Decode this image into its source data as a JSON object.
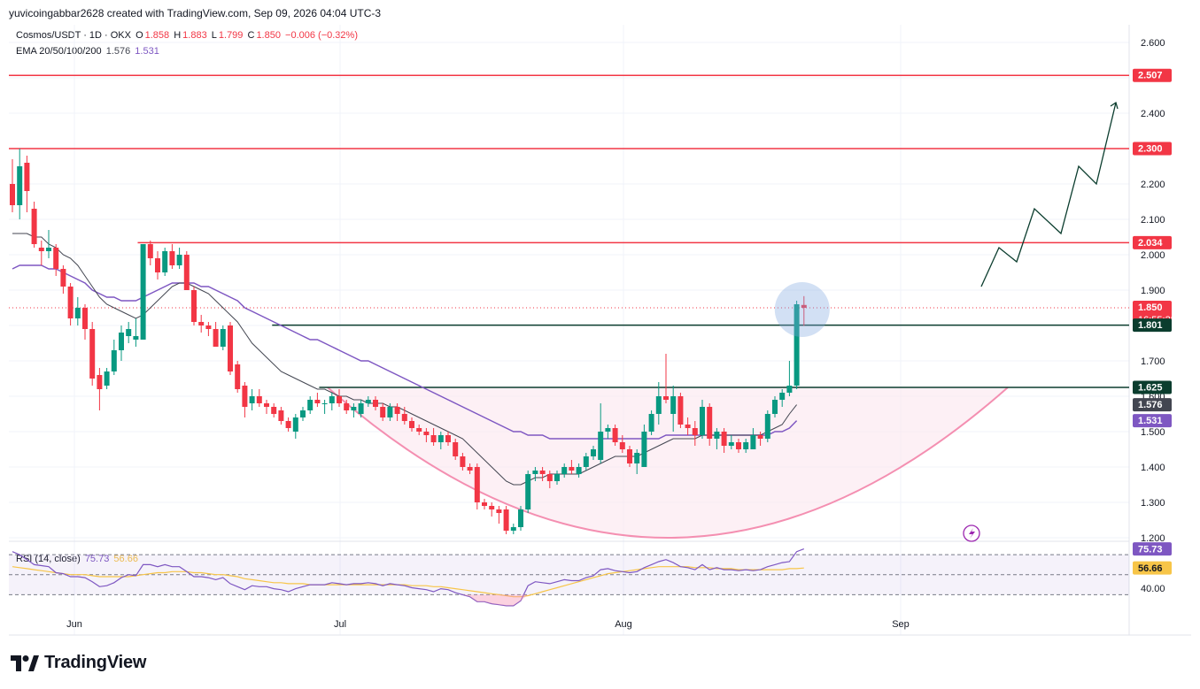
{
  "credit": "yuvicoingabbar2628 created with TradingView.com, Sep 09, 2026 04:04 UTC-3",
  "brand": "TradingView",
  "legend": {
    "symbol": "Cosmos/USDT · 1D · OKX",
    "o_label": "O",
    "o": "1.858",
    "h_label": "H",
    "h": "1.883",
    "l_label": "L",
    "l": "1.799",
    "c_label": "C",
    "c": "1.850",
    "change": "−0.006 (−0.32%)",
    "ema_label": "EMA 20/50/100/200",
    "ema_values": [
      "1.576",
      "1.531"
    ]
  },
  "rsi_legend": {
    "label": "RSI (14, close)",
    "rsi": "75.73",
    "ma": "56.66"
  },
  "colors": {
    "up": "#089981",
    "down": "#f23645",
    "resistance": "#f23645",
    "support": "#0b3d2e",
    "ema20": "#434651",
    "ema50": "#7e57c2",
    "rsi": "#7e57c2",
    "rsi_ma": "#f7c548",
    "cup": "#f48fb1",
    "projection": "#0b3d2e",
    "highlight": "#7ea6e0"
  },
  "chart_data": {
    "type": "candlestick",
    "title": "Cosmos/USDT · 1D · OKX",
    "x_labels": [
      "Jun",
      "Jul",
      "Aug",
      "Sep"
    ],
    "y_ticks": [
      "2.600",
      "2.500",
      "2.400",
      "2.300",
      "2.200",
      "2.100",
      "2.000",
      "1.900",
      "1.800",
      "1.700",
      "1.600",
      "1.500",
      "1.400",
      "1.300",
      "1.200"
    ],
    "ylim": [
      1.17,
      2.65
    ],
    "price_badges": [
      {
        "text": "2.507",
        "value": 2.507,
        "color": "#f23645"
      },
      {
        "text": "2.300",
        "value": 2.3,
        "color": "#f23645"
      },
      {
        "text": "2.034",
        "value": 2.034,
        "color": "#f23645"
      },
      {
        "text": "1.850",
        "value": 1.85,
        "color": "#f23645",
        "sub": "16:55:28"
      },
      {
        "text": "1.801",
        "value": 1.801,
        "color": "#0b3d2e"
      },
      {
        "text": "1.625",
        "value": 1.625,
        "color": "#0b3d2e"
      },
      {
        "text": "1.576",
        "value": 1.576,
        "color": "#434651"
      },
      {
        "text": "1.531",
        "value": 1.531,
        "color": "#7e57c2"
      }
    ],
    "horizontal_lines": [
      {
        "value": 2.507,
        "color": "#f23645",
        "from": 0.0
      },
      {
        "value": 2.3,
        "color": "#f23645",
        "from": 0.0
      },
      {
        "value": 2.034,
        "color": "#f23645",
        "from": 0.115
      },
      {
        "value": 1.801,
        "color": "#0b3d2e",
        "from": 0.235
      },
      {
        "value": 1.625,
        "color": "#0b3d2e",
        "from": 0.277
      }
    ],
    "candles": [
      [
        2.2,
        2.27,
        2.12,
        2.14
      ],
      [
        2.14,
        2.3,
        2.1,
        2.25
      ],
      [
        2.26,
        2.28,
        2.12,
        2.18
      ],
      [
        2.13,
        2.15,
        2.02,
        2.03
      ],
      [
        2.02,
        2.04,
        1.97,
        2.01
      ],
      [
        2.01,
        2.07,
        1.99,
        2.02
      ],
      [
        2.02,
        2.03,
        1.94,
        1.96
      ],
      [
        1.96,
        1.97,
        1.89,
        1.91
      ],
      [
        1.91,
        1.92,
        1.8,
        1.82
      ],
      [
        1.82,
        1.88,
        1.8,
        1.85
      ],
      [
        1.85,
        1.86,
        1.76,
        1.79
      ],
      [
        1.79,
        1.81,
        1.63,
        1.65
      ],
      [
        1.66,
        1.68,
        1.56,
        1.62
      ],
      [
        1.63,
        1.68,
        1.62,
        1.67
      ],
      [
        1.67,
        1.76,
        1.66,
        1.73
      ],
      [
        1.73,
        1.8,
        1.7,
        1.78
      ],
      [
        1.77,
        1.81,
        1.75,
        1.79
      ],
      [
        1.76,
        1.82,
        1.74,
        1.77
      ],
      [
        1.76,
        2.03,
        1.76,
        2.03
      ],
      [
        2.03,
        2.04,
        1.97,
        1.99
      ],
      [
        1.99,
        2.01,
        1.93,
        1.95
      ],
      [
        1.95,
        2.02,
        1.94,
        2.01
      ],
      [
        2.01,
        2.03,
        1.96,
        1.97
      ],
      [
        1.97,
        2.02,
        1.96,
        2.0
      ],
      [
        2.0,
        2.01,
        1.9,
        1.9
      ],
      [
        1.9,
        1.91,
        1.8,
        1.81
      ],
      [
        1.81,
        1.83,
        1.78,
        1.8
      ],
      [
        1.8,
        1.81,
        1.77,
        1.79
      ],
      [
        1.79,
        1.81,
        1.74,
        1.74
      ],
      [
        1.74,
        1.8,
        1.73,
        1.79
      ],
      [
        1.8,
        1.81,
        1.66,
        1.67
      ],
      [
        1.69,
        1.7,
        1.61,
        1.62
      ],
      [
        1.63,
        1.64,
        1.54,
        1.57
      ],
      [
        1.58,
        1.62,
        1.56,
        1.6
      ],
      [
        1.6,
        1.62,
        1.57,
        1.58
      ],
      [
        1.58,
        1.59,
        1.55,
        1.57
      ],
      [
        1.57,
        1.58,
        1.54,
        1.55
      ],
      [
        1.56,
        1.57,
        1.52,
        1.53
      ],
      [
        1.53,
        1.54,
        1.5,
        1.51
      ],
      [
        1.5,
        1.55,
        1.48,
        1.54
      ],
      [
        1.54,
        1.57,
        1.53,
        1.56
      ],
      [
        1.56,
        1.6,
        1.55,
        1.59
      ],
      [
        1.59,
        1.61,
        1.57,
        1.58
      ],
      [
        1.58,
        1.59,
        1.55,
        1.58
      ],
      [
        1.58,
        1.61,
        1.56,
        1.6
      ],
      [
        1.6,
        1.62,
        1.57,
        1.58
      ],
      [
        1.58,
        1.59,
        1.55,
        1.56
      ],
      [
        1.56,
        1.58,
        1.54,
        1.57
      ],
      [
        1.55,
        1.59,
        1.54,
        1.58
      ],
      [
        1.58,
        1.6,
        1.57,
        1.59
      ],
      [
        1.59,
        1.6,
        1.56,
        1.57
      ],
      [
        1.57,
        1.58,
        1.53,
        1.54
      ],
      [
        1.54,
        1.58,
        1.53,
        1.57
      ],
      [
        1.57,
        1.58,
        1.53,
        1.55
      ],
      [
        1.55,
        1.57,
        1.52,
        1.53
      ],
      [
        1.53,
        1.54,
        1.5,
        1.51
      ],
      [
        1.51,
        1.52,
        1.49,
        1.5
      ],
      [
        1.5,
        1.51,
        1.47,
        1.49
      ],
      [
        1.49,
        1.51,
        1.46,
        1.47
      ],
      [
        1.47,
        1.5,
        1.45,
        1.49
      ],
      [
        1.49,
        1.5,
        1.46,
        1.47
      ],
      [
        1.47,
        1.48,
        1.42,
        1.43
      ],
      [
        1.43,
        1.44,
        1.39,
        1.4
      ],
      [
        1.4,
        1.41,
        1.38,
        1.39
      ],
      [
        1.4,
        1.41,
        1.28,
        1.3
      ],
      [
        1.3,
        1.31,
        1.28,
        1.29
      ],
      [
        1.29,
        1.3,
        1.26,
        1.28
      ],
      [
        1.28,
        1.29,
        1.24,
        1.27
      ],
      [
        1.28,
        1.29,
        1.21,
        1.22
      ],
      [
        1.22,
        1.24,
        1.21,
        1.23
      ],
      [
        1.23,
        1.29,
        1.22,
        1.28
      ],
      [
        1.28,
        1.39,
        1.27,
        1.38
      ],
      [
        1.38,
        1.4,
        1.36,
        1.39
      ],
      [
        1.39,
        1.4,
        1.36,
        1.38
      ],
      [
        1.38,
        1.39,
        1.34,
        1.36
      ],
      [
        1.36,
        1.39,
        1.35,
        1.38
      ],
      [
        1.38,
        1.41,
        1.37,
        1.4
      ],
      [
        1.4,
        1.42,
        1.38,
        1.39
      ],
      [
        1.38,
        1.41,
        1.37,
        1.4
      ],
      [
        1.4,
        1.44,
        1.39,
        1.43
      ],
      [
        1.43,
        1.46,
        1.42,
        1.45
      ],
      [
        1.42,
        1.58,
        1.41,
        1.5
      ],
      [
        1.5,
        1.52,
        1.48,
        1.51
      ],
      [
        1.51,
        1.52,
        1.46,
        1.47
      ],
      [
        1.47,
        1.49,
        1.44,
        1.45
      ],
      [
        1.45,
        1.46,
        1.4,
        1.41
      ],
      [
        1.41,
        1.45,
        1.38,
        1.44
      ],
      [
        1.4,
        1.52,
        1.4,
        1.5
      ],
      [
        1.5,
        1.56,
        1.49,
        1.55
      ],
      [
        1.55,
        1.64,
        1.52,
        1.6
      ],
      [
        1.6,
        1.72,
        1.58,
        1.59
      ],
      [
        1.55,
        1.63,
        1.5,
        1.6
      ],
      [
        1.6,
        1.61,
        1.51,
        1.52
      ],
      [
        1.52,
        1.54,
        1.49,
        1.51
      ],
      [
        1.51,
        1.53,
        1.46,
        1.49
      ],
      [
        1.49,
        1.59,
        1.48,
        1.57
      ],
      [
        1.57,
        1.58,
        1.46,
        1.48
      ],
      [
        1.48,
        1.51,
        1.45,
        1.5
      ],
      [
        1.5,
        1.51,
        1.44,
        1.46
      ],
      [
        1.46,
        1.49,
        1.45,
        1.47
      ],
      [
        1.47,
        1.48,
        1.44,
        1.45
      ],
      [
        1.45,
        1.48,
        1.44,
        1.47
      ],
      [
        1.45,
        1.51,
        1.45,
        1.49
      ],
      [
        1.49,
        1.5,
        1.46,
        1.48
      ],
      [
        1.48,
        1.56,
        1.47,
        1.55
      ],
      [
        1.55,
        1.6,
        1.54,
        1.59
      ],
      [
        1.59,
        1.62,
        1.57,
        1.61
      ],
      [
        1.61,
        1.7,
        1.6,
        1.63
      ],
      [
        1.63,
        1.87,
        1.62,
        1.86
      ],
      [
        1.858,
        1.883,
        1.799,
        1.85
      ]
    ],
    "ema20": [
      2.06,
      2.06,
      2.06,
      2.05,
      2.05,
      2.03,
      2.02,
      2.0,
      1.99,
      1.97,
      1.94,
      1.91,
      1.88,
      1.86,
      1.85,
      1.84,
      1.83,
      1.82,
      1.83,
      1.85,
      1.87,
      1.89,
      1.91,
      1.92,
      1.92,
      1.91,
      1.9,
      1.89,
      1.87,
      1.85,
      1.83,
      1.81,
      1.78,
      1.75,
      1.73,
      1.71,
      1.69,
      1.67,
      1.66,
      1.65,
      1.64,
      1.63,
      1.62,
      1.62,
      1.61,
      1.6,
      1.6,
      1.59,
      1.59,
      1.58,
      1.58,
      1.58,
      1.57,
      1.57,
      1.56,
      1.55,
      1.54,
      1.53,
      1.52,
      1.51,
      1.5,
      1.49,
      1.48,
      1.46,
      1.44,
      1.42,
      1.4,
      1.38,
      1.36,
      1.35,
      1.35,
      1.36,
      1.37,
      1.37,
      1.38,
      1.38,
      1.38,
      1.38,
      1.38,
      1.39,
      1.4,
      1.41,
      1.42,
      1.43,
      1.43,
      1.43,
      1.43,
      1.44,
      1.45,
      1.46,
      1.47,
      1.48,
      1.48,
      1.48,
      1.48,
      1.49,
      1.49,
      1.49,
      1.49,
      1.49,
      1.49,
      1.49,
      1.49,
      1.49,
      1.5,
      1.51,
      1.52,
      1.55,
      1.576
    ],
    "ema50": [
      1.96,
      1.97,
      1.97,
      1.97,
      1.97,
      1.96,
      1.96,
      1.95,
      1.94,
      1.93,
      1.92,
      1.9,
      1.89,
      1.88,
      1.88,
      1.87,
      1.87,
      1.87,
      1.88,
      1.89,
      1.9,
      1.91,
      1.92,
      1.92,
      1.92,
      1.92,
      1.91,
      1.91,
      1.9,
      1.89,
      1.88,
      1.87,
      1.85,
      1.84,
      1.83,
      1.82,
      1.81,
      1.8,
      1.79,
      1.78,
      1.77,
      1.76,
      1.76,
      1.75,
      1.74,
      1.73,
      1.72,
      1.71,
      1.7,
      1.7,
      1.69,
      1.68,
      1.67,
      1.66,
      1.65,
      1.64,
      1.63,
      1.62,
      1.61,
      1.6,
      1.59,
      1.58,
      1.57,
      1.56,
      1.55,
      1.54,
      1.53,
      1.52,
      1.51,
      1.5,
      1.5,
      1.49,
      1.49,
      1.49,
      1.48,
      1.48,
      1.48,
      1.48,
      1.48,
      1.48,
      1.48,
      1.48,
      1.48,
      1.48,
      1.48,
      1.48,
      1.48,
      1.48,
      1.48,
      1.48,
      1.49,
      1.49,
      1.49,
      1.49,
      1.49,
      1.49,
      1.49,
      1.49,
      1.49,
      1.49,
      1.49,
      1.49,
      1.49,
      1.49,
      1.49,
      1.5,
      1.5,
      1.51,
      1.531
    ],
    "projection": [
      1.91,
      2.02,
      1.98,
      2.13,
      2.06,
      2.25,
      2.2,
      2.43
    ],
    "cup": {
      "start": 1.625,
      "bottom": 1.2,
      "end": 1.625
    },
    "rsi": [
      73,
      70,
      65,
      60,
      59,
      58,
      52,
      51,
      48,
      48,
      47,
      43,
      38,
      39,
      42,
      47,
      50,
      49,
      60,
      60,
      58,
      60,
      58,
      58,
      53,
      48,
      48,
      47,
      45,
      47,
      41,
      38,
      35,
      39,
      38,
      38,
      36,
      35,
      33,
      36,
      38,
      40,
      40,
      40,
      42,
      41,
      40,
      41,
      41,
      42,
      41,
      39,
      41,
      40,
      39,
      37,
      36,
      35,
      33,
      36,
      35,
      32,
      30,
      28,
      23,
      23,
      21,
      20,
      19,
      19,
      24,
      39,
      43,
      42,
      41,
      43,
      45,
      44,
      44,
      47,
      49,
      55,
      56,
      54,
      53,
      52,
      53,
      57,
      60,
      63,
      65,
      62,
      58,
      57,
      55,
      60,
      55,
      57,
      55,
      55,
      54,
      55,
      54,
      55,
      58,
      60,
      62,
      63,
      73,
      75.73
    ],
    "rsi_ma": [
      58,
      57,
      56,
      55,
      54,
      53,
      52,
      51,
      50,
      50,
      50,
      49,
      48,
      48,
      48,
      48,
      48,
      49,
      50,
      51,
      52,
      52,
      53,
      53,
      53,
      52,
      52,
      51,
      50,
      50,
      49,
      48,
      46,
      45,
      44,
      43,
      42,
      42,
      41,
      41,
      41,
      40,
      40,
      40,
      40,
      40,
      40,
      40,
      40,
      40,
      40,
      40,
      40,
      40,
      40,
      39,
      39,
      39,
      38,
      38,
      37,
      36,
      35,
      34,
      33,
      32,
      31,
      30,
      29,
      28,
      28,
      29,
      31,
      33,
      35,
      37,
      39,
      41,
      43,
      45,
      47,
      49,
      51,
      52,
      53,
      54,
      55,
      56,
      57,
      58,
      58,
      58,
      58,
      58,
      57,
      57,
      57,
      56,
      56,
      56,
      55,
      55,
      55,
      55,
      55,
      55,
      55,
      56,
      56,
      56.66
    ],
    "rsi_levels": [
      70,
      50,
      30
    ],
    "rsi_axis_label": "40.00",
    "rsi_badges": [
      {
        "text": "75.73",
        "value": 75.73,
        "color": "#7e57c2"
      },
      {
        "text": "56.66",
        "value": 56.66,
        "color": "#f7c548"
      }
    ]
  }
}
